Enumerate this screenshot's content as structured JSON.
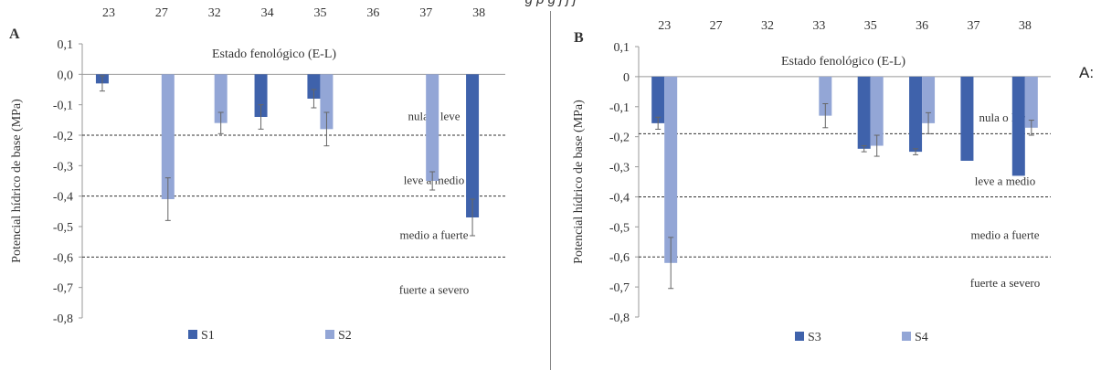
{
  "page": {
    "top_caption": "g                                               p                   g      j     j     j",
    "side_label": "A:"
  },
  "colors": {
    "dark_blue": "#3F62AB",
    "light_blue": "#93A6D6",
    "threshold_line": "#333333"
  },
  "chart_data": [
    {
      "panel": "A",
      "type": "bar",
      "ylabel": "Potencial hídrico de base (MPa)",
      "xlabel": "Estado fenológico (E-L)",
      "ylim": [
        -0.8,
        0.1
      ],
      "y_ticks": [
        "0,1",
        "0,0",
        "-0,1",
        "-0,2",
        "-0,3",
        "-0,4",
        "-0,5",
        "-0,6",
        "-0,7",
        "-0,8"
      ],
      "categories": [
        "23",
        "27",
        "32",
        "34",
        "35",
        "36",
        "37",
        "38"
      ],
      "series": [
        {
          "name": "S1",
          "color": "#3F62AB",
          "values": [
            -0.03,
            null,
            null,
            -0.14,
            -0.08,
            null,
            null,
            -0.47
          ],
          "errors": [
            0.025,
            null,
            null,
            0.04,
            0.03,
            null,
            null,
            0.06
          ]
        },
        {
          "name": "S2",
          "color": "#93A6D6",
          "values": [
            null,
            -0.41,
            -0.16,
            null,
            -0.18,
            null,
            -0.35,
            null
          ],
          "errors": [
            null,
            0.07,
            0.035,
            null,
            0.055,
            null,
            0.03,
            null
          ]
        }
      ],
      "thresholds": [
        -0.2,
        -0.4,
        -0.6
      ],
      "zone_labels": [
        {
          "text": "nula o leve",
          "y": -0.15
        },
        {
          "text": "leve a medio",
          "y": -0.36
        },
        {
          "text": "medio a fuerte",
          "y": -0.54
        },
        {
          "text": "fuerte a severo",
          "y": -0.72
        }
      ],
      "legend": "bottom-center"
    },
    {
      "panel": "B",
      "type": "bar",
      "ylabel": "Potencial hídrico de base (MPa)",
      "xlabel": "Estado fenológico (E-L)",
      "ylim": [
        -0.8,
        0.1
      ],
      "y_ticks": [
        "0,1",
        "0",
        "-0,1",
        "-0,2",
        "-0,3",
        "-0,4",
        "-0,5",
        "-0,6",
        "-0,7",
        "-0,8"
      ],
      "categories": [
        "23",
        "27",
        "32",
        "33",
        "35",
        "36",
        "37",
        "38"
      ],
      "series": [
        {
          "name": "S3",
          "color": "#3F62AB",
          "values": [
            -0.155,
            null,
            null,
            null,
            -0.24,
            -0.25,
            -0.28,
            -0.33
          ],
          "errors": [
            0.02,
            null,
            null,
            null,
            0.01,
            0.01,
            null,
            null
          ]
        },
        {
          "name": "S4",
          "color": "#93A6D6",
          "values": [
            -0.62,
            null,
            null,
            -0.13,
            -0.23,
            -0.155,
            null,
            -0.17
          ],
          "errors": [
            0.085,
            null,
            null,
            0.04,
            0.035,
            0.035,
            null,
            0.025
          ]
        }
      ],
      "thresholds": [
        -0.19,
        -0.4,
        -0.6
      ],
      "zone_labels": [
        {
          "text": "nula o leve",
          "y": -0.15
        },
        {
          "text": "leve a medio",
          "y": -0.36
        },
        {
          "text": "medio a fuerte",
          "y": -0.54
        },
        {
          "text": "fuerte a severo",
          "y": -0.7
        }
      ],
      "legend": "bottom-center"
    }
  ]
}
